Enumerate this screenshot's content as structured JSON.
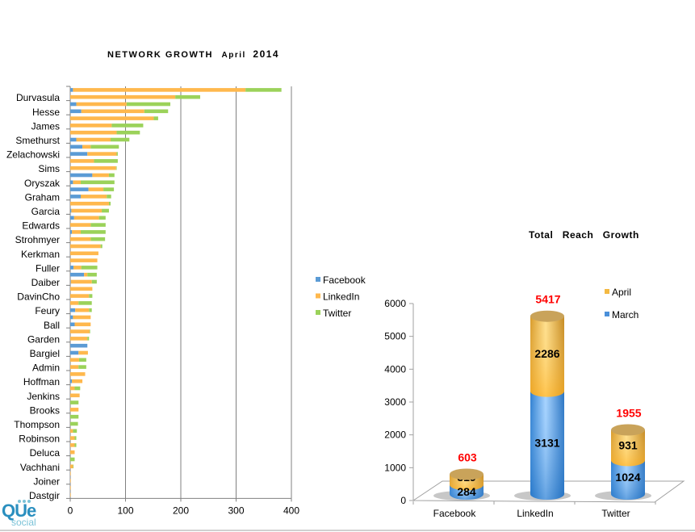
{
  "colors": {
    "facebook": "#5b9bd5",
    "linkedin": "#ffb84d",
    "twitter": "#9bd25a",
    "april": "#f4b942",
    "march": "#4a90d9",
    "total": "#ff0000"
  },
  "logo": {
    "brand": "QUe",
    "sub": "social"
  },
  "chart_data": [
    {
      "type": "bar",
      "orientation": "horizontal",
      "stacked": true,
      "title": "NETWORK   GROWTH",
      "title_month": "April",
      "title_year": "2014",
      "xlim": [
        0,
        400
      ],
      "xticks": [
        "0",
        "100",
        "200",
        "300",
        "400"
      ],
      "grid": "vertical",
      "legend": {
        "placement": "right",
        "entries": [
          "Facebook",
          "LinkedIn",
          "Twitter"
        ]
      },
      "bars": [
        {
          "label": "",
          "values": [
            5,
            312,
            65
          ]
        },
        {
          "label": "Durvasula",
          "values": [
            0,
            190,
            45
          ]
        },
        {
          "label": "",
          "values": [
            11,
            91,
            79
          ]
        },
        {
          "label": "Hesse",
          "values": [
            20,
            114,
            43
          ]
        },
        {
          "label": "",
          "values": [
            0,
            151,
            8
          ]
        },
        {
          "label": "James",
          "values": [
            0,
            75,
            57
          ]
        },
        {
          "label": "",
          "values": [
            0,
            84,
            42
          ]
        },
        {
          "label": "Smethurst",
          "values": [
            11,
            62,
            34
          ]
        },
        {
          "label": "",
          "values": [
            22,
            15,
            51
          ]
        },
        {
          "label": "Zelachowski",
          "values": [
            31,
            53,
            2
          ]
        },
        {
          "label": "",
          "values": [
            0,
            43,
            43
          ]
        },
        {
          "label": "Sims",
          "values": [
            0,
            83,
            1
          ]
        },
        {
          "label": "",
          "values": [
            40,
            30,
            10
          ]
        },
        {
          "label": "Oryszak",
          "values": [
            5,
            14,
            61
          ]
        },
        {
          "label": "",
          "values": [
            33,
            27,
            19
          ]
        },
        {
          "label": "Graham",
          "values": [
            19,
            47,
            8
          ]
        },
        {
          "label": "",
          "values": [
            0,
            70,
            3
          ]
        },
        {
          "label": "Garcia",
          "values": [
            2,
            55,
            13
          ]
        },
        {
          "label": "",
          "values": [
            7,
            45,
            12
          ]
        },
        {
          "label": "Edwards",
          "values": [
            0,
            37,
            27
          ]
        },
        {
          "label": "",
          "values": [
            3,
            16,
            45
          ]
        },
        {
          "label": "Strohmyer",
          "values": [
            0,
            37,
            26
          ]
        },
        {
          "label": "",
          "values": [
            0,
            55,
            3
          ]
        },
        {
          "label": "Kerkman",
          "values": [
            0,
            51,
            0
          ]
        },
        {
          "label": "",
          "values": [
            0,
            49,
            0
          ]
        },
        {
          "label": "Fuller",
          "values": [
            6,
            14,
            29
          ]
        },
        {
          "label": "",
          "values": [
            25,
            6,
            17
          ]
        },
        {
          "label": "Daiber",
          "values": [
            1,
            38,
            9
          ]
        },
        {
          "label": "",
          "values": [
            0,
            40,
            0
          ]
        },
        {
          "label": "DavinCho",
          "values": [
            0,
            34,
            6
          ]
        },
        {
          "label": "",
          "values": [
            0,
            15,
            24
          ]
        },
        {
          "label": "Feury",
          "values": [
            9,
            25,
            5
          ]
        },
        {
          "label": "",
          "values": [
            5,
            32,
            0
          ]
        },
        {
          "label": "Ball",
          "values": [
            8,
            29,
            0
          ]
        },
        {
          "label": "",
          "values": [
            0,
            35,
            1
          ]
        },
        {
          "label": "Garden",
          "values": [
            0,
            31,
            3
          ]
        },
        {
          "label": "",
          "values": [
            31,
            0,
            0
          ]
        },
        {
          "label": "Bargiel",
          "values": [
            15,
            17,
            0
          ]
        },
        {
          "label": "",
          "values": [
            0,
            16,
            13
          ]
        },
        {
          "label": "Admin",
          "values": [
            0,
            15,
            14
          ]
        },
        {
          "label": "",
          "values": [
            0,
            27,
            0
          ]
        },
        {
          "label": "Hoffman",
          "values": [
            3,
            19,
            0
          ]
        },
        {
          "label": "",
          "values": [
            0,
            8,
            10
          ]
        },
        {
          "label": "Jenkins",
          "values": [
            0,
            17,
            0
          ]
        },
        {
          "label": "",
          "values": [
            0,
            0,
            15
          ]
        },
        {
          "label": "Brooks",
          "values": [
            0,
            15,
            0
          ]
        },
        {
          "label": "",
          "values": [
            0,
            0,
            15
          ]
        },
        {
          "label": "Thompson",
          "values": [
            0,
            0,
            14
          ]
        },
        {
          "label": "",
          "values": [
            0,
            5,
            7
          ]
        },
        {
          "label": "Robinson",
          "values": [
            0,
            8,
            3
          ]
        },
        {
          "label": "",
          "values": [
            0,
            8,
            3
          ]
        },
        {
          "label": "Deluca",
          "values": [
            0,
            8,
            0
          ]
        },
        {
          "label": "",
          "values": [
            0,
            0,
            8
          ]
        },
        {
          "label": "Vachhani",
          "values": [
            0,
            5,
            1
          ]
        },
        {
          "label": "",
          "values": [
            0,
            1,
            0
          ]
        },
        {
          "label": "Joiner",
          "values": [
            0,
            1,
            0
          ]
        },
        {
          "label": "",
          "values": [
            0,
            1,
            0
          ]
        },
        {
          "label": "Dastgir",
          "values": [
            0,
            1,
            0
          ]
        }
      ]
    },
    {
      "type": "bar",
      "style": "3d-cylinder",
      "stacked": true,
      "title": "Total   Reach   Growth",
      "categories": [
        "Facebook",
        "LinkedIn",
        "Twitter"
      ],
      "series": [
        {
          "name": "March",
          "values": [
            284,
            3131,
            1024
          ]
        },
        {
          "name": "April",
          "values": [
            319,
            2286,
            931
          ]
        }
      ],
      "totals": [
        "603",
        "5417",
        "1955"
      ],
      "ylim": [
        0,
        6000
      ],
      "yticks": [
        "0",
        "1000",
        "2000",
        "3000",
        "4000",
        "5000",
        "6000"
      ],
      "legend": {
        "placement": "top-right",
        "entries": [
          "April",
          "March"
        ]
      }
    }
  ]
}
